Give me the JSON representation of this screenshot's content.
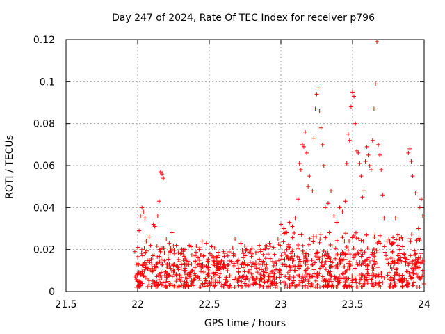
{
  "chart_data": {
    "type": "scatter",
    "title": "Day 247 of 2024, Rate Of TEC Index for receiver p796",
    "xlabel": "GPS time / hours",
    "ylabel": "ROTI / TECUs",
    "xlim": [
      21.5,
      24
    ],
    "ylim": [
      0,
      0.12
    ],
    "xticks": [
      "21.5",
      "22",
      "22.5",
      "23",
      "23.5",
      "24"
    ],
    "yticks": [
      "0",
      "0.02",
      "0.04",
      "0.06",
      "0.08",
      "0.1",
      "0.12"
    ],
    "grid": true,
    "marker": "+",
    "color": "#ff0000",
    "series": [
      {
        "name": "ROTI",
        "points": [
          [
            21.98,
            0.019
          ],
          [
            21.99,
            0.013
          ],
          [
            22.0,
            0.021
          ],
          [
            22.01,
            0.029
          ],
          [
            22.02,
            0.036
          ],
          [
            22.03,
            0.04
          ],
          [
            22.04,
            0.038
          ],
          [
            22.05,
            0.035
          ],
          [
            22.06,
            0.024
          ],
          [
            22.08,
            0.026
          ],
          [
            22.09,
            0.022
          ],
          [
            22.11,
            0.032
          ],
          [
            22.12,
            0.031
          ],
          [
            22.14,
            0.036
          ],
          [
            22.15,
            0.043
          ],
          [
            22.16,
            0.057
          ],
          [
            22.17,
            0.056
          ],
          [
            22.18,
            0.054
          ],
          [
            22.2,
            0.025
          ],
          [
            22.22,
            0.023
          ],
          [
            22.24,
            0.028
          ],
          [
            22.27,
            0.022
          ],
          [
            22.3,
            0.018
          ],
          [
            22.33,
            0.02
          ],
          [
            22.36,
            0.022
          ],
          [
            22.4,
            0.017
          ],
          [
            22.43,
            0.02
          ],
          [
            22.45,
            0.024
          ],
          [
            22.48,
            0.023
          ],
          [
            22.52,
            0.017
          ],
          [
            22.55,
            0.016
          ],
          [
            22.6,
            0.019
          ],
          [
            22.63,
            0.017
          ],
          [
            22.68,
            0.025
          ],
          [
            22.72,
            0.023
          ],
          [
            22.76,
            0.02
          ],
          [
            22.8,
            0.018
          ],
          [
            22.85,
            0.022
          ],
          [
            22.88,
            0.02
          ],
          [
            22.92,
            0.023
          ],
          [
            22.95,
            0.021
          ],
          [
            22.98,
            0.025
          ],
          [
            23.0,
            0.032
          ],
          [
            23.02,
            0.03
          ],
          [
            23.04,
            0.028
          ],
          [
            23.06,
            0.033
          ],
          [
            23.08,
            0.031
          ],
          [
            23.1,
            0.035
          ],
          [
            23.12,
            0.044
          ],
          [
            23.13,
            0.061
          ],
          [
            23.14,
            0.058
          ],
          [
            23.15,
            0.07
          ],
          [
            23.16,
            0.069
          ],
          [
            23.17,
            0.076
          ],
          [
            23.18,
            0.066
          ],
          [
            23.19,
            0.05
          ],
          [
            23.2,
            0.055
          ],
          [
            23.22,
            0.048
          ],
          [
            23.23,
            0.073
          ],
          [
            23.24,
            0.087
          ],
          [
            23.25,
            0.094
          ],
          [
            23.26,
            0.097
          ],
          [
            23.27,
            0.086
          ],
          [
            23.28,
            0.078
          ],
          [
            23.29,
            0.07
          ],
          [
            23.3,
            0.06
          ],
          [
            23.31,
            0.04
          ],
          [
            23.33,
            0.042
          ],
          [
            23.35,
            0.048
          ],
          [
            23.37,
            0.036
          ],
          [
            23.39,
            0.033
          ],
          [
            23.41,
            0.04
          ],
          [
            23.43,
            0.038
          ],
          [
            23.45,
            0.043
          ],
          [
            23.46,
            0.061
          ],
          [
            23.47,
            0.075
          ],
          [
            23.48,
            0.072
          ],
          [
            23.49,
            0.088
          ],
          [
            23.5,
            0.095
          ],
          [
            23.51,
            0.093
          ],
          [
            23.52,
            0.08
          ],
          [
            23.53,
            0.067
          ],
          [
            23.54,
            0.066
          ],
          [
            23.55,
            0.061
          ],
          [
            23.56,
            0.055
          ],
          [
            23.57,
            0.045
          ],
          [
            23.58,
            0.048
          ],
          [
            23.59,
            0.062
          ],
          [
            23.6,
            0.069
          ],
          [
            23.61,
            0.065
          ],
          [
            23.62,
            0.06
          ],
          [
            23.63,
            0.058
          ],
          [
            23.64,
            0.072
          ],
          [
            23.65,
            0.087
          ],
          [
            23.66,
            0.099
          ],
          [
            23.67,
            0.119
          ],
          [
            23.68,
            0.07
          ],
          [
            23.69,
            0.065
          ],
          [
            23.7,
            0.058
          ],
          [
            23.71,
            0.046
          ],
          [
            23.72,
            0.035
          ],
          [
            23.74,
            0.024
          ],
          [
            23.76,
            0.024
          ],
          [
            23.78,
            0.023
          ],
          [
            23.8,
            0.035
          ],
          [
            23.83,
            0.02
          ],
          [
            23.86,
            0.018
          ],
          [
            23.89,
            0.066
          ],
          [
            23.9,
            0.068
          ],
          [
            23.91,
            0.062
          ],
          [
            23.92,
            0.055
          ],
          [
            23.94,
            0.047
          ],
          [
            23.96,
            0.03
          ],
          [
            23.97,
            0.04
          ],
          [
            23.98,
            0.044
          ],
          [
            23.99,
            0.036
          ]
        ]
      }
    ],
    "baseline_band": {
      "description": "dense cloud of samples between 0.002 and 0.015 from 21.98 to 24",
      "x_range": [
        21.98,
        24
      ],
      "y_range": [
        0.002,
        0.015
      ]
    }
  }
}
